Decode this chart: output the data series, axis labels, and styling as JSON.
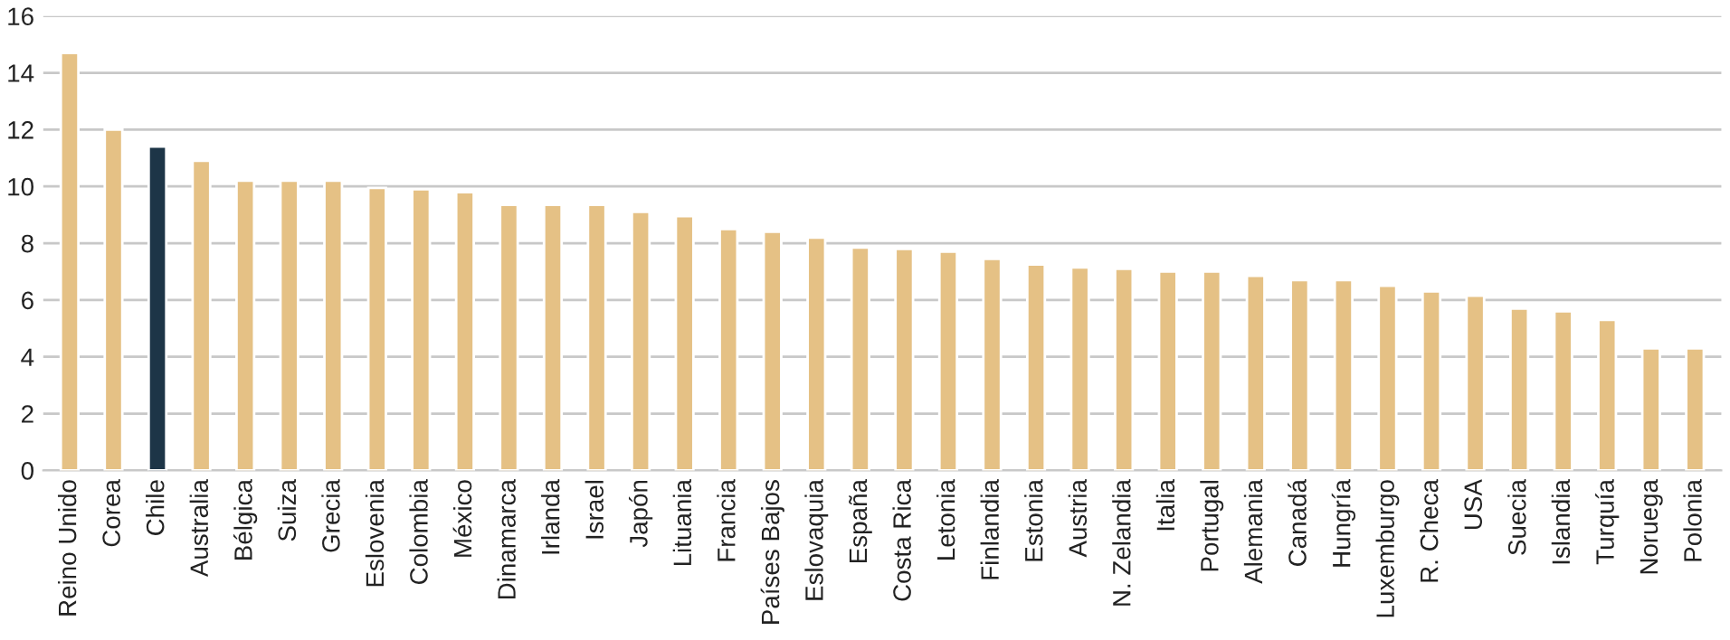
{
  "chart_data": {
    "type": "bar",
    "categories": [
      "Reino Unido",
      "Corea",
      "Chile",
      "Australia",
      "Bélgica",
      "Suiza",
      "Grecia",
      "Eslovenia",
      "Colombia",
      "México",
      "Dinamarca",
      "Irlanda",
      "Israel",
      "Japón",
      "Lituania",
      "Francia",
      "Países Bajos",
      "Eslovaquia",
      "España",
      "Costa Rica",
      "Letonia",
      "Finlandia",
      "Estonia",
      "Austria",
      "N. Zelandia",
      "Italia",
      "Portugal",
      "Alemania",
      "Canadá",
      "Hungría",
      "Luxemburgo",
      "R. Checa",
      "USA",
      "Suecia",
      "Islandia",
      "Turquía",
      "Noruega",
      "Polonia"
    ],
    "series": [
      {
        "values": [
          14.7,
          12.0,
          11.4,
          10.9,
          10.2,
          10.2,
          10.2,
          9.95,
          9.9,
          9.8,
          9.35,
          9.35,
          9.35,
          9.1,
          8.95,
          8.5,
          8.4,
          8.2,
          7.85,
          7.8,
          7.7,
          7.45,
          7.25,
          7.15,
          7.1,
          7.0,
          7.0,
          6.85,
          6.7,
          6.7,
          6.5,
          6.3,
          6.15,
          5.7,
          5.6,
          5.3,
          4.3,
          4.3
        ],
        "colors": [
          "#e5c185",
          "#e5c185",
          "#1d3547",
          "#e5c185",
          "#e5c185",
          "#e5c185",
          "#e5c185",
          "#e5c185",
          "#e5c185",
          "#e5c185",
          "#e5c185",
          "#e5c185",
          "#e5c185",
          "#e5c185",
          "#e5c185",
          "#e5c185",
          "#e5c185",
          "#e5c185",
          "#e5c185",
          "#e5c185",
          "#e5c185",
          "#e5c185",
          "#e5c185",
          "#e5c185",
          "#e5c185",
          "#e5c185",
          "#e5c185",
          "#e5c185",
          "#e5c185",
          "#e5c185",
          "#e5c185",
          "#e5c185",
          "#e5c185",
          "#e5c185",
          "#e5c185",
          "#e5c185",
          "#e5c185",
          "#e5c185"
        ]
      }
    ],
    "ylim": [
      0,
      16
    ],
    "yticks": [
      0,
      2,
      4,
      6,
      8,
      10,
      12,
      14,
      16
    ],
    "grid": "y",
    "legend": false
  }
}
